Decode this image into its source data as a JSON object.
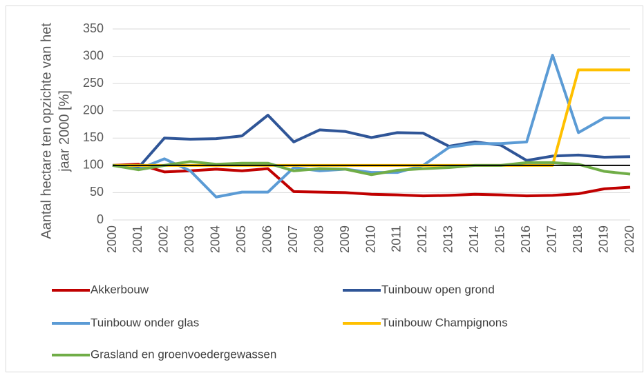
{
  "chart_data": {
    "type": "line",
    "ylabel": [
      "Aantal hectare ten opzichte van het",
      "jaar 2000 [%]"
    ],
    "categories": [
      "2000",
      "2001",
      "2002",
      "2003",
      "2004",
      "2005",
      "2006",
      "2007",
      "2008",
      "2009",
      "2010",
      "2011",
      "2012",
      "2013",
      "2014",
      "2015",
      "2016",
      "2017",
      "2018",
      "2019",
      "2020"
    ],
    "series": [
      {
        "name": "Akkerbouw",
        "color": "#c00000",
        "values": [
          100,
          102,
          88,
          90,
          93,
          90,
          94,
          52,
          51,
          50,
          47,
          46,
          44,
          45,
          47,
          46,
          44,
          45,
          48,
          57,
          60
        ]
      },
      {
        "name": "Tuinbouw open grond",
        "color": "#2f5597",
        "values": [
          100,
          96,
          150,
          148,
          149,
          154,
          192,
          143,
          165,
          162,
          151,
          160,
          159,
          135,
          143,
          137,
          109,
          117,
          119,
          115,
          116
        ]
      },
      {
        "name": "Tuinbouw onder glas",
        "color": "#5b9bd5",
        "values": [
          100,
          93,
          112,
          90,
          42,
          51,
          51,
          96,
          90,
          93,
          87,
          87,
          100,
          133,
          140,
          140,
          143,
          302,
          160,
          187,
          187
        ]
      },
      {
        "name": "Tuinbouw Champignons",
        "color": "#ffc000",
        "values": [
          100,
          100,
          100,
          100,
          100,
          100,
          100,
          100,
          100,
          100,
          100,
          100,
          100,
          100,
          100,
          100,
          100,
          100,
          275,
          275,
          275
        ]
      },
      {
        "name": "Grasland en groenvoedergewassen",
        "color": "#70ad47",
        "values": [
          100,
          92,
          100,
          107,
          102,
          104,
          104,
          90,
          94,
          93,
          83,
          91,
          94,
          96,
          100,
          100,
          105,
          105,
          102,
          89,
          84
        ]
      }
    ],
    "reference_line": {
      "value": 100,
      "color": "#000000"
    },
    "ylim": [
      0,
      350
    ],
    "yticks": [
      0,
      50,
      100,
      150,
      200,
      250,
      300,
      350
    ],
    "grid": true
  }
}
